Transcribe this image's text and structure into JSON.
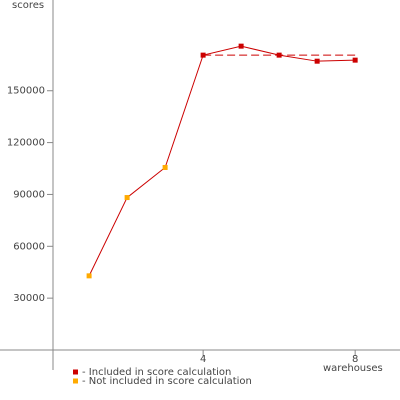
{
  "chart_data": {
    "type": "line",
    "y_label": "scores",
    "x_label": "warehouses",
    "x": [
      1,
      2,
      3,
      4,
      5,
      6,
      7,
      8
    ],
    "series": [
      {
        "color": "#cc0000",
        "values": [
          42900,
          88200,
          105600,
          170600,
          175800,
          170600,
          167100,
          167700
        ]
      }
    ],
    "point_colors": [
      "#ffaa00",
      "#ffaa00",
      "#ffaa00",
      "#cc0000",
      "#cc0000",
      "#cc0000",
      "#cc0000",
      "#cc0000"
    ],
    "score_line": {
      "value": 170600,
      "x": [
        4,
        8
      ],
      "color": "#cc0000"
    },
    "legend": [
      {
        "label": "- Included in score calculation",
        "color": "#cc0000"
      },
      {
        "label": "- Not included in score calculation",
        "color": "#ffaa00"
      }
    ],
    "xlim": [
      0.05,
      9.18
    ],
    "xticks": [
      4,
      8
    ],
    "ylim": [
      0,
      202500
    ],
    "yticks": [
      30000,
      60000,
      90000,
      120000,
      150000
    ]
  }
}
